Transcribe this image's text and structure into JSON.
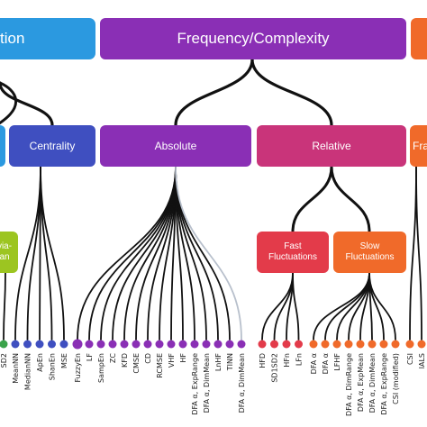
{
  "colors": {
    "blue": "#2b99e0",
    "purple": "#8a2fb5",
    "indigo": "#3f4fc0",
    "magenta": "#c9347a",
    "red": "#e33b4a",
    "orange": "#f06a2a",
    "green": "#3aa34a",
    "yellowgreen": "#9cc521",
    "lightgray": "#b8c0cc",
    "link": "#111111"
  },
  "top_categories": {
    "left_partial": "tion",
    "frequency_complexity": "Frequency/Complexity"
  },
  "subcategories": {
    "centrality": "Centrality",
    "absolute": "Absolute",
    "relative": "Relative",
    "fra_partial": "Fra"
  },
  "subsubcategories": {
    "deviation_partial": [
      "via-",
      "an"
    ],
    "fast_fluctuations": [
      "Fast",
      "Fluctuations"
    ],
    "slow_fluctuations": [
      "Slow",
      "Fluctuations"
    ]
  },
  "leaves": {
    "deviation": [
      "SD2"
    ],
    "centrality": [
      "MeanNN",
      "MedianNN",
      "ApEn",
      "ShanEn",
      "MSE"
    ],
    "absolute": [
      "FuzzyEn",
      "LF",
      "SampEn",
      "ZC",
      "KFD",
      "CMSE",
      "CD",
      "RCMSE",
      "VHF",
      "HF",
      "DFA α, ExpRange",
      "DFA α, DimMean",
      "LnHF",
      "TINN",
      "DFA α, DimMean"
    ],
    "fast": [
      "HFD",
      "SD1SD2",
      "HFn",
      "LFn"
    ],
    "slow": [
      "DFA α",
      "DFA α",
      "LFHF",
      "DFA α, DimRange",
      "DFA α, ExpMean",
      "DFA α, DimMean",
      "DFA α, ExpRange",
      "CSI (modified)"
    ],
    "right_partial": [
      "CSI",
      "IALS"
    ]
  }
}
